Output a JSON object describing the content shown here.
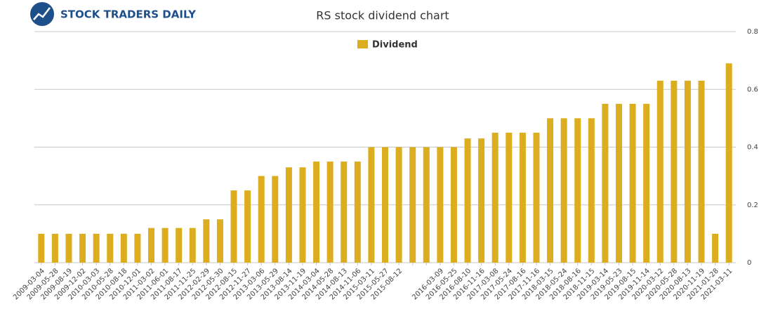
{
  "logo": "STOCK TRADERS DAILY",
  "chart_data": {
    "type": "bar",
    "title": "RS stock dividend chart",
    "categories": [
      "2009-03-04",
      "2009-05-28",
      "2009-08-19",
      "2009-12-02",
      "2010-03-03",
      "2010-05-28",
      "2010-08-18",
      "2010-12-01",
      "2011-03-02",
      "2011-06-01",
      "2011-08-17",
      "2011-11-25",
      "2012-02-29",
      "2012-05-30",
      "2012-08-15",
      "2012-11-27",
      "2013-03-06",
      "2013-05-29",
      "2013-08-14",
      "2013-11-19",
      "2014-03-04",
      "2014-05-28",
      "2014-08-13",
      "2014-11-06",
      "2015-03-11",
      "2015-05-27",
      "2015-08-12",
      null,
      null,
      "2016-03-09",
      "2016-05-25",
      "2016-08-10",
      "2016-11-16",
      "2017-03-08",
      "2017-05-24",
      "2017-08-16",
      "2017-11-16",
      "2018-03-15",
      "2018-05-24",
      "2018-08-16",
      "2018-11-15",
      "2019-03-14",
      "2019-05-23",
      "2019-08-15",
      "2019-11-14",
      "2020-03-12",
      "2020-05-28",
      "2020-08-13",
      "2020-11-19",
      "2021-01-28",
      "2021-03-11"
    ],
    "series": [
      {
        "name": "Dividend",
        "color": "#dcad1e",
        "values": [
          0.1,
          0.1,
          0.1,
          0.1,
          0.1,
          0.1,
          0.1,
          0.1,
          0.12,
          0.12,
          0.12,
          0.12,
          0.15,
          0.15,
          0.25,
          0.25,
          0.3,
          0.3,
          0.33,
          0.33,
          0.35,
          0.35,
          0.35,
          0.35,
          0.4,
          0.4,
          0.4,
          0.4,
          0.4,
          0.4,
          0.4,
          0.43,
          0.43,
          0.45,
          0.45,
          0.45,
          0.45,
          0.5,
          0.5,
          0.5,
          0.5,
          0.55,
          0.55,
          0.55,
          0.55,
          0.63,
          0.63,
          0.63,
          0.63,
          0.1,
          0.69
        ]
      }
    ],
    "ylim": [
      0,
      0.8
    ],
    "yticks": [
      0,
      0.2,
      0.4,
      0.6,
      0.8
    ],
    "grid": true,
    "legend": "top"
  }
}
